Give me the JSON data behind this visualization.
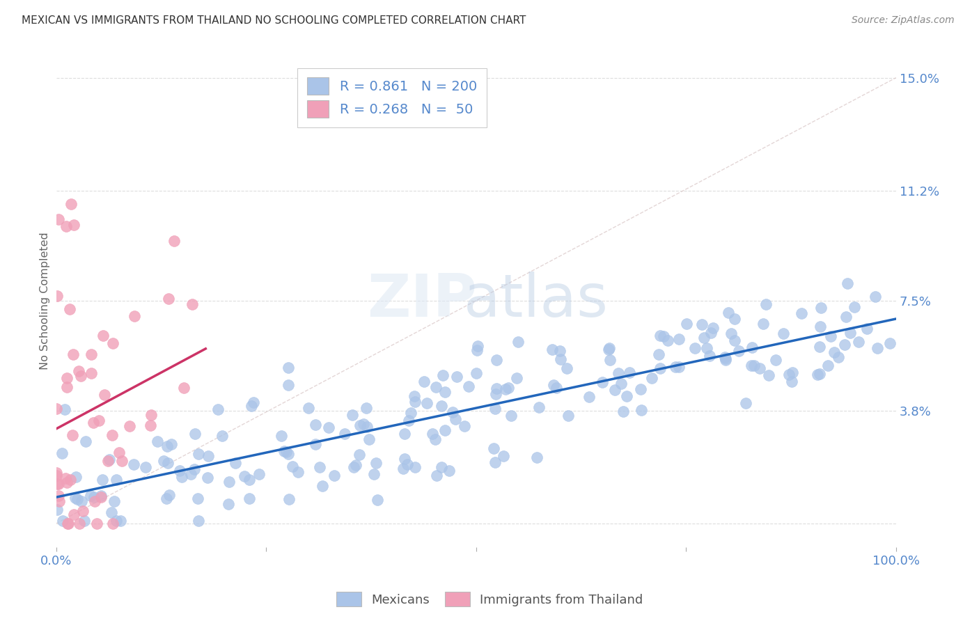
{
  "title": "MEXICAN VS IMMIGRANTS FROM THAILAND NO SCHOOLING COMPLETED CORRELATION CHART",
  "source": "Source: ZipAtlas.com",
  "ylabel": "No Schooling Completed",
  "yticks": [
    0.0,
    0.038,
    0.075,
    0.112,
    0.15
  ],
  "ytick_labels": [
    "",
    "3.8%",
    "7.5%",
    "11.2%",
    "15.0%"
  ],
  "watermark_zip": "ZIP",
  "watermark_atlas": "atlas",
  "legend": {
    "blue_R": "0.861",
    "blue_N": "200",
    "pink_R": "0.268",
    "pink_N": "50"
  },
  "blue_color": "#aac4e8",
  "pink_color": "#f0a0b8",
  "blue_line_color": "#2266bb",
  "pink_line_color": "#cc3366",
  "diagonal_color": "#ddcccc",
  "grid_color": "#dddddd",
  "title_color": "#333333",
  "axis_label_color": "#5588cc",
  "source_color": "#888888",
  "background_color": "#ffffff",
  "N_blue": 200,
  "N_pink": 50,
  "blue_R": 0.861,
  "pink_R": 0.268,
  "xmin": 0.0,
  "xmax": 1.0,
  "ymin": -0.008,
  "ymax": 0.158
}
